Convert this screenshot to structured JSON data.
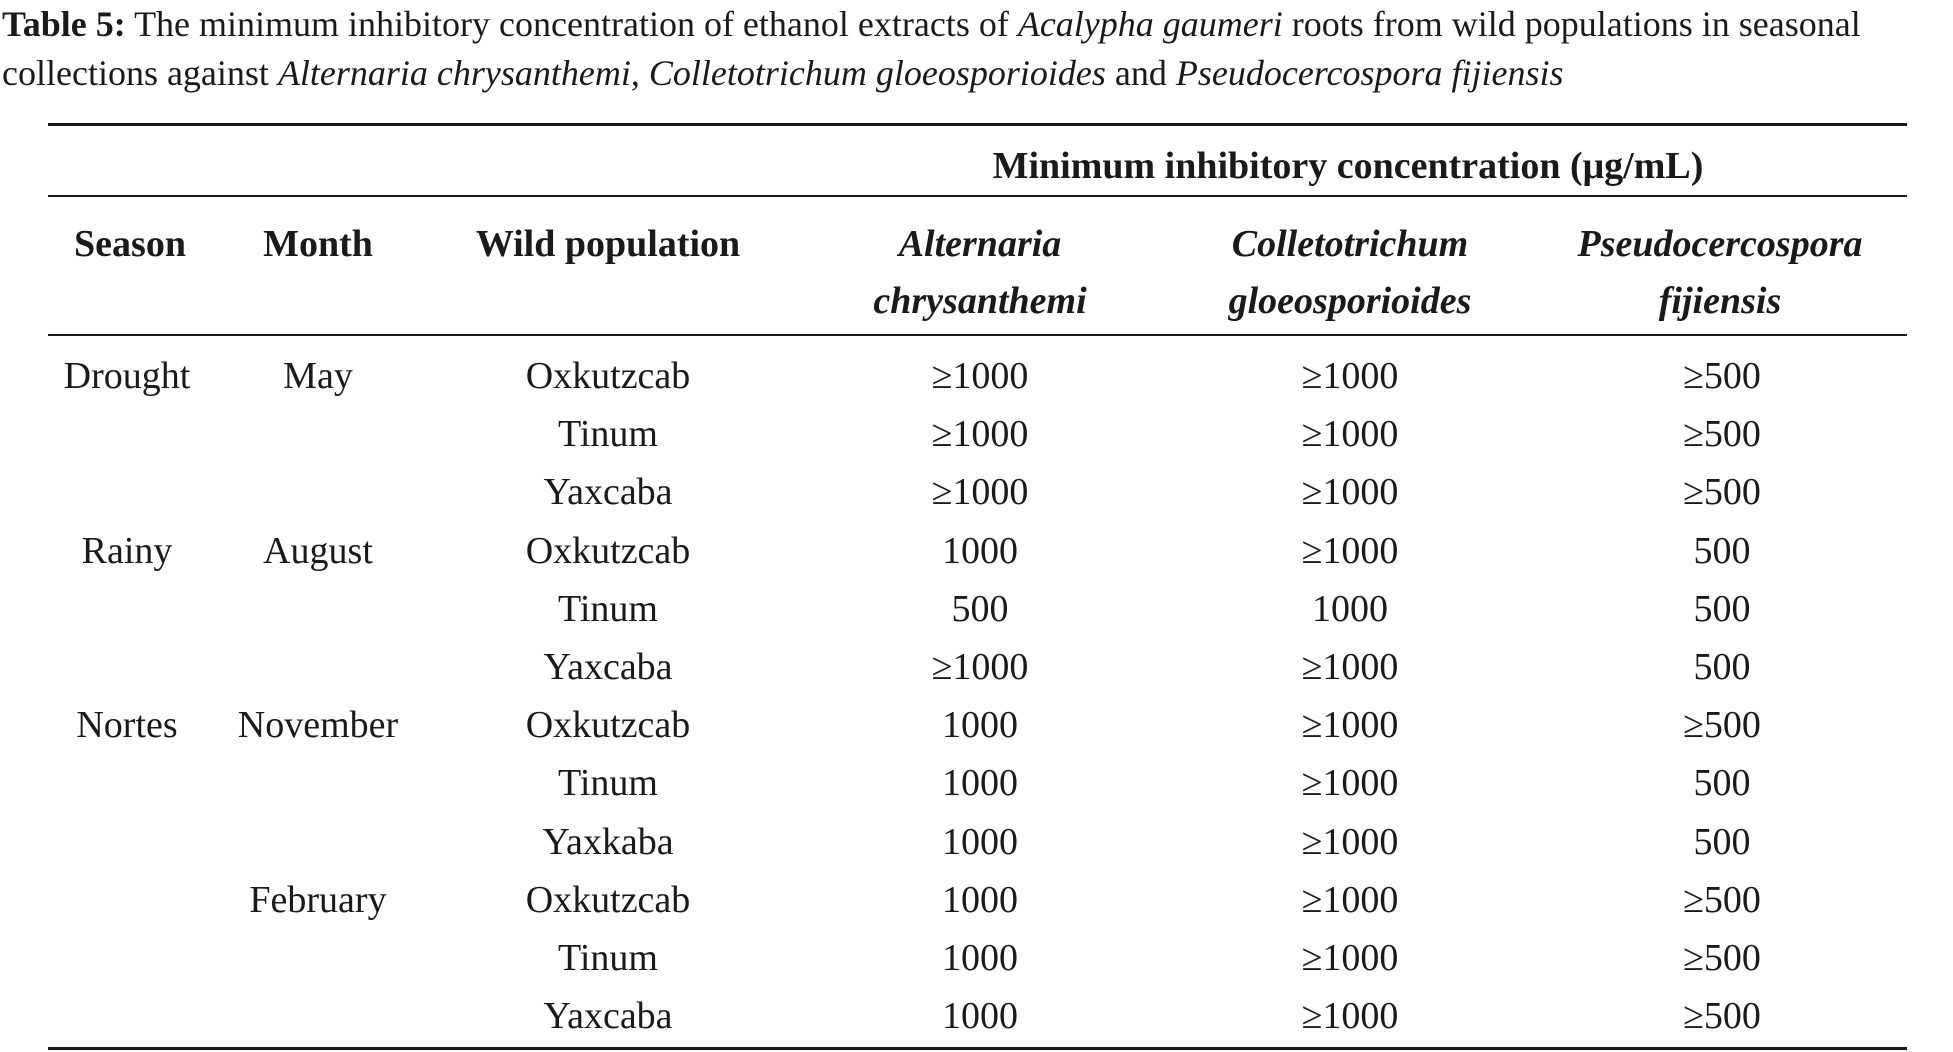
{
  "caption": {
    "label": "Table 5:",
    "text_1": "The minimum inhibitory concentration of ethanol extracts of",
    "species_1": "Acalypha gaumeri",
    "text_2": "roots from wild populations in seasonal collections against",
    "species_2": "Alternaria chrysanthemi",
    "sep_1": ",",
    "species_3": "Colletotrichum gloeosporioides",
    "text_3": "and",
    "species_4": "Pseudocercospora fijiensis"
  },
  "table": {
    "spanner": "Minimum inhibitory concentration (μg/mL)",
    "headers": {
      "season": "Season",
      "month": "Month",
      "population": "Wild population",
      "alternaria_1": "Alternaria",
      "alternaria_2": "chrysanthemi",
      "colletotrichum_1": "Colletotrichum",
      "colletotrichum_2": "gloeosporioides",
      "pseudocercospora_1": "Pseudocercospora",
      "pseudocercospora_2": "fijiensis"
    },
    "rows": [
      {
        "season": "Drought",
        "month": "May",
        "population": "Oxkutzcab",
        "alternaria": "≥1000",
        "colletotrichum": "≥1000",
        "pseudocercospora": "≥500"
      },
      {
        "season": "",
        "month": "",
        "population": "Tinum",
        "alternaria": "≥1000",
        "colletotrichum": "≥1000",
        "pseudocercospora": "≥500"
      },
      {
        "season": "",
        "month": "",
        "population": "Yaxcaba",
        "alternaria": "≥1000",
        "colletotrichum": "≥1000",
        "pseudocercospora": "≥500"
      },
      {
        "season": "Rainy",
        "month": "August",
        "population": "Oxkutzcab",
        "alternaria": "1000",
        "colletotrichum": "≥1000",
        "pseudocercospora": "500"
      },
      {
        "season": "",
        "month": "",
        "population": "Tinum",
        "alternaria": "500",
        "colletotrichum": "1000",
        "pseudocercospora": "500"
      },
      {
        "season": "",
        "month": "",
        "population": "Yaxcaba",
        "alternaria": "≥1000",
        "colletotrichum": "≥1000",
        "pseudocercospora": "500"
      },
      {
        "season": "Nortes",
        "month": "November",
        "population": "Oxkutzcab",
        "alternaria": "1000",
        "colletotrichum": "≥1000",
        "pseudocercospora": "≥500"
      },
      {
        "season": "",
        "month": "",
        "population": "Tinum",
        "alternaria": "1000",
        "colletotrichum": "≥1000",
        "pseudocercospora": "500"
      },
      {
        "season": "",
        "month": "",
        "population": "Yaxkaba",
        "alternaria": "1000",
        "colletotrichum": "≥1000",
        "pseudocercospora": "500"
      },
      {
        "season": "",
        "month": "February",
        "population": "Oxkutzcab",
        "alternaria": "1000",
        "colletotrichum": "≥1000",
        "pseudocercospora": "≥500"
      },
      {
        "season": "",
        "month": "",
        "population": "Tinum",
        "alternaria": "1000",
        "colletotrichum": "≥1000",
        "pseudocercospora": "≥500"
      },
      {
        "season": "",
        "month": "",
        "population": "Yaxcaba",
        "alternaria": "1000",
        "colletotrichum": "≥1000",
        "pseudocercospora": "≥500"
      }
    ]
  }
}
